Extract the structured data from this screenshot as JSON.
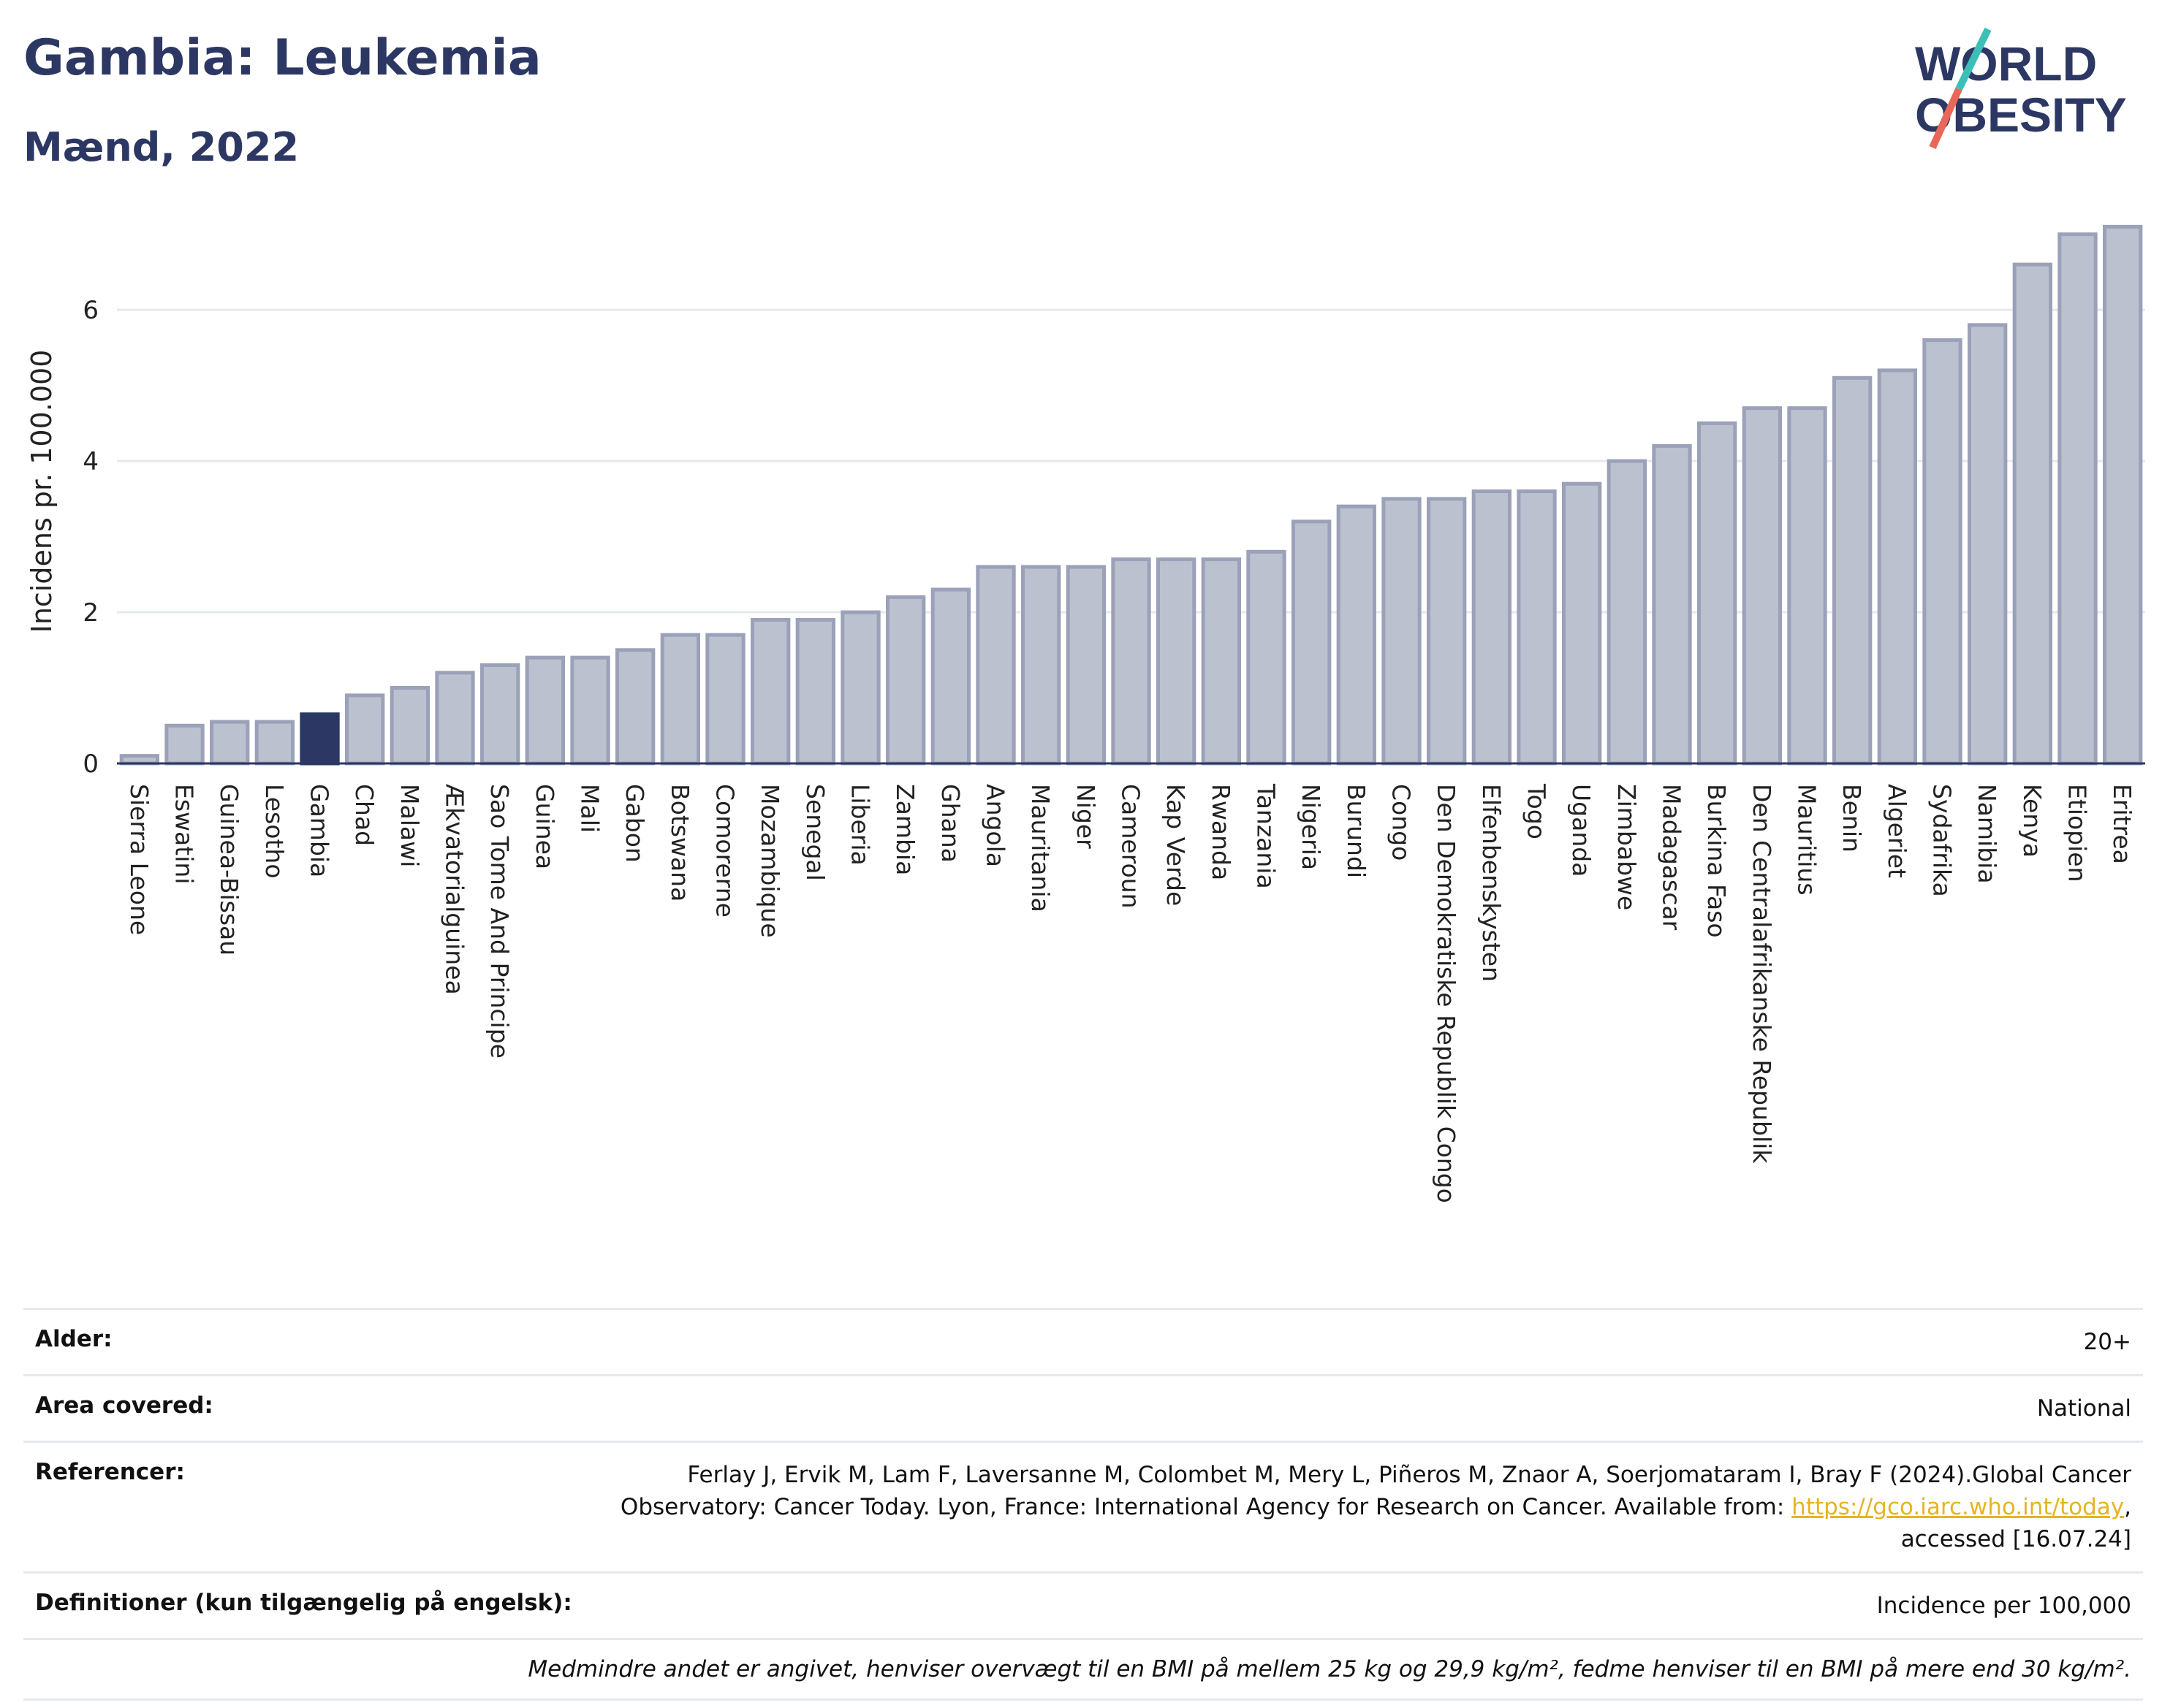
{
  "header": {
    "title": "Gambia: Leukemia",
    "subtitle": "Mænd, 2022"
  },
  "logo": {
    "line1": "WORLD",
    "line2": "OBESITY",
    "icon": "world-obesity-logo"
  },
  "colors": {
    "bar": "#bcc1d0",
    "bar_stroke": "#9aa1b8",
    "highlight": "#2c3863",
    "text": "#2c3863"
  },
  "chart_data": {
    "type": "bar",
    "ylabel": "Incidens pr. 100.000",
    "ylim": [
      0,
      7.2
    ],
    "yticks": [
      0,
      2,
      4,
      6
    ],
    "grid": true,
    "highlight": "Gambia",
    "categories": [
      "Sierra Leone",
      "Eswatini",
      "Guinea-Bissau",
      "Lesotho",
      "Gambia",
      "Chad",
      "Malawi",
      "Ækvatorialguinea",
      "Sao Tome And Principe",
      "Guinea",
      "Mali",
      "Gabon",
      "Botswana",
      "Comorerne",
      "Mozambique",
      "Senegal",
      "Liberia",
      "Zambia",
      "Ghana",
      "Angola",
      "Mauritania",
      "Niger",
      "Cameroun",
      "Kap Verde",
      "Rwanda",
      "Tanzania",
      "Nigeria",
      "Burundi",
      "Congo",
      "Den Demokratiske Republik Congo",
      "Elfenbenskysten",
      "Togo",
      "Uganda",
      "Zimbabwe",
      "Madagascar",
      "Burkina Faso",
      "Den Centralafrikanske Republik",
      "Mauritius",
      "Benin",
      "Algeriet",
      "Sydafrika",
      "Namibia",
      "Kenya",
      "Etiopien",
      "Eritrea"
    ],
    "values": [
      0.1,
      0.5,
      0.55,
      0.55,
      0.65,
      0.9,
      1.0,
      1.2,
      1.3,
      1.4,
      1.4,
      1.5,
      1.7,
      1.7,
      1.9,
      1.9,
      2.0,
      2.2,
      2.3,
      2.6,
      2.6,
      2.6,
      2.7,
      2.7,
      2.7,
      2.8,
      3.2,
      3.4,
      3.5,
      3.5,
      3.6,
      3.6,
      3.7,
      4.0,
      4.2,
      4.5,
      4.7,
      4.7,
      5.1,
      5.2,
      5.6,
      5.8,
      6.6,
      7.0,
      7.1
    ]
  },
  "info": {
    "age_label": "Alder:",
    "age_value": "20+",
    "area_label": "Area covered:",
    "area_value": "National",
    "ref_label": "Referencer:",
    "ref_text1": "Ferlay J, Ervik M, Lam F, Laversanne M, Colombet M, Mery L, Piñeros M, Znaor A, Soerjomataram I, Bray F (2024).Global Cancer Observatory: Cancer Today. Lyon, France: International Agency for Research on Cancer. Available from: ",
    "ref_link": "https://gco.iarc.who.int/today",
    "ref_text2": ", accessed [16.07.24]",
    "def_label": "Definitioner (kun tilgængelig på engelsk):",
    "def_value": "Incidence per 100,000",
    "note": "Medmindre andet er angivet, henviser overvægt til en BMI på mellem 25 kg og 29,9 kg/m², fedme henviser til en BMI på mere end 30 kg/m²."
  }
}
